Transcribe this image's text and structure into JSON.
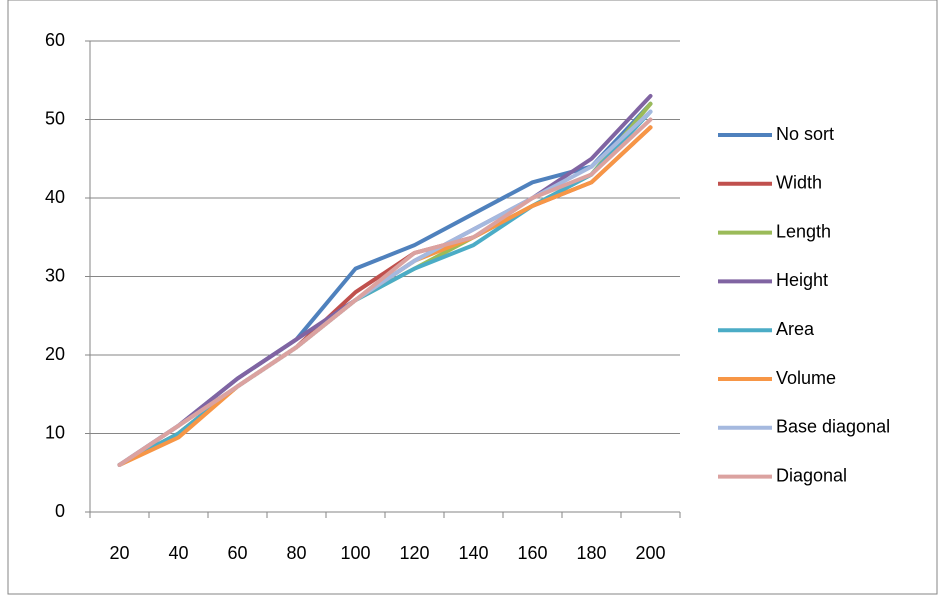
{
  "chart_data": {
    "type": "line",
    "categories": [
      "20",
      "40",
      "60",
      "80",
      "100",
      "120",
      "140",
      "160",
      "180",
      "200"
    ],
    "ylim": [
      0,
      60
    ],
    "yticks": [
      0,
      10,
      20,
      30,
      40,
      50,
      60
    ],
    "grid": true,
    "legend": "right",
    "series": [
      {
        "name": "No sort",
        "color": "#4f81bd",
        "values": [
          6,
          11,
          17,
          22,
          31,
          34,
          38,
          42,
          44,
          52
        ]
      },
      {
        "name": "Width",
        "color": "#c0504d",
        "values": [
          6,
          10,
          16,
          21,
          28,
          33,
          35,
          39,
          42,
          49
        ]
      },
      {
        "name": "Length",
        "color": "#9bbb59",
        "values": [
          6,
          10,
          16,
          21,
          27,
          31,
          35,
          39,
          43,
          52
        ]
      },
      {
        "name": "Height",
        "color": "#8064a2",
        "values": [
          6,
          11,
          17,
          22,
          27,
          32,
          36,
          40,
          45,
          53
        ]
      },
      {
        "name": "Area",
        "color": "#4bacc6",
        "values": [
          6,
          10,
          16,
          21,
          27,
          31,
          34,
          39,
          43,
          51
        ]
      },
      {
        "name": "Volume",
        "color": "#f79646",
        "values": [
          6,
          9.5,
          16,
          21,
          27,
          32,
          35,
          39,
          42,
          49
        ]
      },
      {
        "name": "Base diagonal",
        "color": "#a5b9df",
        "values": [
          6,
          11,
          16,
          21,
          27,
          32,
          36,
          40,
          44,
          51
        ]
      },
      {
        "name": "Diagonal",
        "color": "#dba2a0",
        "values": [
          6,
          11,
          16,
          21,
          27,
          33,
          35,
          40,
          43,
          50
        ]
      }
    ]
  }
}
